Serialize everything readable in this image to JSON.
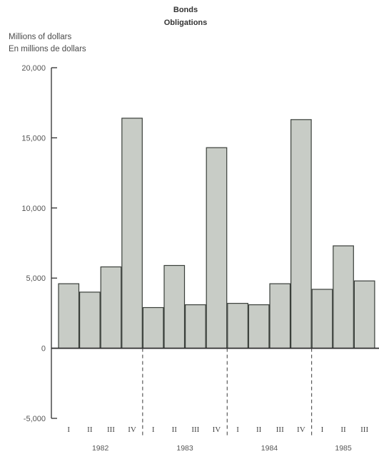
{
  "chart_data": {
    "type": "bar",
    "title": "Bonds",
    "subtitle": "Obligations",
    "ylabel": [
      "Millions of dollars",
      "En millions de dollars"
    ],
    "ylim": [
      -5000,
      20000
    ],
    "yticks": [
      -5000,
      0,
      5000,
      10000,
      15000,
      20000
    ],
    "ytick_labels": [
      "-5,000",
      "0",
      "5,000",
      "10,000",
      "15,000",
      "20,000"
    ],
    "categories": [
      "I",
      "II",
      "III",
      "IV",
      "I",
      "II",
      "III",
      "IV",
      "I",
      "II",
      "III",
      "IV",
      "I",
      "II",
      "III"
    ],
    "years": [
      {
        "label": "1982",
        "quarters": 4
      },
      {
        "label": "1983",
        "quarters": 4
      },
      {
        "label": "1984",
        "quarters": 4
      },
      {
        "label": "1985",
        "quarters": 3
      }
    ],
    "values": [
      4600,
      4000,
      5800,
      16400,
      2900,
      5900,
      3100,
      14300,
      3200,
      3100,
      4600,
      16300,
      4200,
      7300,
      4800
    ],
    "bar_color": "#c8ccc6",
    "bar_edge": "#3a3f3a"
  }
}
